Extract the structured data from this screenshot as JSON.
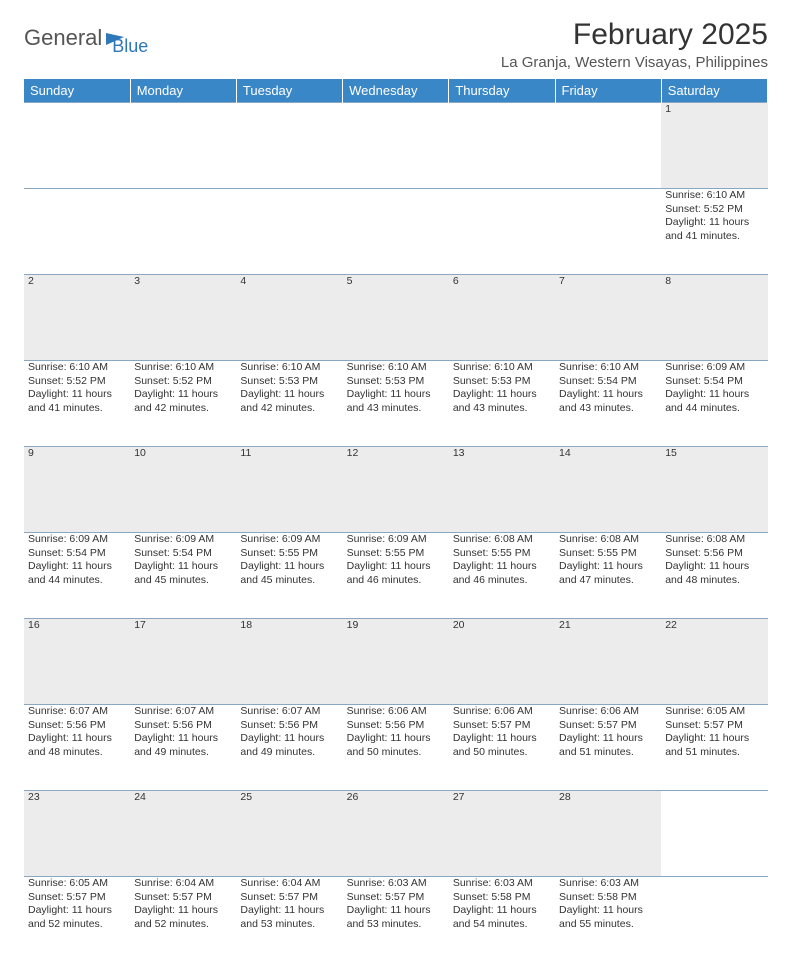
{
  "logo": {
    "part1": "General",
    "part2": "Blue"
  },
  "title": "February 2025",
  "location": "La Granja, Western Visayas, Philippines",
  "colors": {
    "header_bg": "#3a87c8",
    "daynum_bg": "#ececec",
    "border": "#8aa6c0",
    "logo_blue": "#2f78b7"
  },
  "daysOfWeek": [
    "Sunday",
    "Monday",
    "Tuesday",
    "Wednesday",
    "Thursday",
    "Friday",
    "Saturday"
  ],
  "weeks": [
    [
      null,
      null,
      null,
      null,
      null,
      null,
      {
        "n": "1",
        "sunrise": "6:10 AM",
        "sunset": "5:52 PM",
        "daylight": "11 hours and 41 minutes."
      }
    ],
    [
      {
        "n": "2",
        "sunrise": "6:10 AM",
        "sunset": "5:52 PM",
        "daylight": "11 hours and 41 minutes."
      },
      {
        "n": "3",
        "sunrise": "6:10 AM",
        "sunset": "5:52 PM",
        "daylight": "11 hours and 42 minutes."
      },
      {
        "n": "4",
        "sunrise": "6:10 AM",
        "sunset": "5:53 PM",
        "daylight": "11 hours and 42 minutes."
      },
      {
        "n": "5",
        "sunrise": "6:10 AM",
        "sunset": "5:53 PM",
        "daylight": "11 hours and 43 minutes."
      },
      {
        "n": "6",
        "sunrise": "6:10 AM",
        "sunset": "5:53 PM",
        "daylight": "11 hours and 43 minutes."
      },
      {
        "n": "7",
        "sunrise": "6:10 AM",
        "sunset": "5:54 PM",
        "daylight": "11 hours and 43 minutes."
      },
      {
        "n": "8",
        "sunrise": "6:09 AM",
        "sunset": "5:54 PM",
        "daylight": "11 hours and 44 minutes."
      }
    ],
    [
      {
        "n": "9",
        "sunrise": "6:09 AM",
        "sunset": "5:54 PM",
        "daylight": "11 hours and 44 minutes."
      },
      {
        "n": "10",
        "sunrise": "6:09 AM",
        "sunset": "5:54 PM",
        "daylight": "11 hours and 45 minutes."
      },
      {
        "n": "11",
        "sunrise": "6:09 AM",
        "sunset": "5:55 PM",
        "daylight": "11 hours and 45 minutes."
      },
      {
        "n": "12",
        "sunrise": "6:09 AM",
        "sunset": "5:55 PM",
        "daylight": "11 hours and 46 minutes."
      },
      {
        "n": "13",
        "sunrise": "6:08 AM",
        "sunset": "5:55 PM",
        "daylight": "11 hours and 46 minutes."
      },
      {
        "n": "14",
        "sunrise": "6:08 AM",
        "sunset": "5:55 PM",
        "daylight": "11 hours and 47 minutes."
      },
      {
        "n": "15",
        "sunrise": "6:08 AM",
        "sunset": "5:56 PM",
        "daylight": "11 hours and 48 minutes."
      }
    ],
    [
      {
        "n": "16",
        "sunrise": "6:07 AM",
        "sunset": "5:56 PM",
        "daylight": "11 hours and 48 minutes."
      },
      {
        "n": "17",
        "sunrise": "6:07 AM",
        "sunset": "5:56 PM",
        "daylight": "11 hours and 49 minutes."
      },
      {
        "n": "18",
        "sunrise": "6:07 AM",
        "sunset": "5:56 PM",
        "daylight": "11 hours and 49 minutes."
      },
      {
        "n": "19",
        "sunrise": "6:06 AM",
        "sunset": "5:56 PM",
        "daylight": "11 hours and 50 minutes."
      },
      {
        "n": "20",
        "sunrise": "6:06 AM",
        "sunset": "5:57 PM",
        "daylight": "11 hours and 50 minutes."
      },
      {
        "n": "21",
        "sunrise": "6:06 AM",
        "sunset": "5:57 PM",
        "daylight": "11 hours and 51 minutes."
      },
      {
        "n": "22",
        "sunrise": "6:05 AM",
        "sunset": "5:57 PM",
        "daylight": "11 hours and 51 minutes."
      }
    ],
    [
      {
        "n": "23",
        "sunrise": "6:05 AM",
        "sunset": "5:57 PM",
        "daylight": "11 hours and 52 minutes."
      },
      {
        "n": "24",
        "sunrise": "6:04 AM",
        "sunset": "5:57 PM",
        "daylight": "11 hours and 52 minutes."
      },
      {
        "n": "25",
        "sunrise": "6:04 AM",
        "sunset": "5:57 PM",
        "daylight": "11 hours and 53 minutes."
      },
      {
        "n": "26",
        "sunrise": "6:03 AM",
        "sunset": "5:57 PM",
        "daylight": "11 hours and 53 minutes."
      },
      {
        "n": "27",
        "sunrise": "6:03 AM",
        "sunset": "5:58 PM",
        "daylight": "11 hours and 54 minutes."
      },
      {
        "n": "28",
        "sunrise": "6:03 AM",
        "sunset": "5:58 PM",
        "daylight": "11 hours and 55 minutes."
      },
      null
    ]
  ],
  "labels": {
    "sunrise": "Sunrise:",
    "sunset": "Sunset:",
    "daylight": "Daylight:"
  }
}
